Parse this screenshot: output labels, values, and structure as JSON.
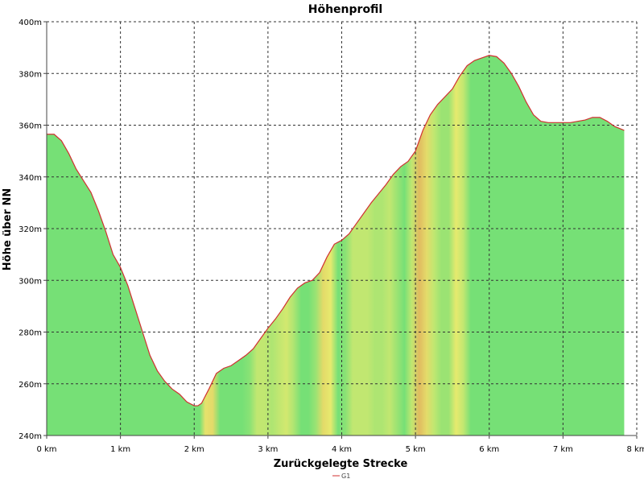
{
  "chart_data": {
    "type": "area",
    "title": "Höhenprofil",
    "xlabel": "Zurückgelegte Strecke",
    "ylabel": "Höhe über NN",
    "xlim": [
      0,
      8
    ],
    "ylim": [
      240,
      400
    ],
    "x_ticks": [
      0,
      1,
      2,
      3,
      4,
      5,
      6,
      7,
      8
    ],
    "x_tick_labels": [
      "0 km",
      "1 km",
      "2 km",
      "3 km",
      "4 km",
      "5 km",
      "6 km",
      "7 km",
      "8 km"
    ],
    "y_ticks": [
      240,
      260,
      280,
      300,
      320,
      340,
      360,
      380,
      400
    ],
    "y_tick_labels": [
      "240m",
      "260m",
      "280m",
      "300m",
      "320m",
      "340m",
      "360m",
      "380m",
      "400m"
    ],
    "grid": true,
    "legend_position": "bottom",
    "series": [
      {
        "name": "G1",
        "color": "#d03030",
        "x": [
          0,
          0.1,
          0.2,
          0.3,
          0.4,
          0.5,
          0.6,
          0.7,
          0.8,
          0.9,
          1.0,
          1.1,
          1.2,
          1.3,
          1.4,
          1.5,
          1.6,
          1.7,
          1.8,
          1.9,
          2.0,
          2.05,
          2.1,
          2.2,
          2.3,
          2.4,
          2.5,
          2.6,
          2.7,
          2.8,
          2.9,
          3.0,
          3.1,
          3.2,
          3.3,
          3.4,
          3.5,
          3.6,
          3.7,
          3.8,
          3.9,
          4.0,
          4.1,
          4.2,
          4.3,
          4.4,
          4.5,
          4.6,
          4.7,
          4.8,
          4.9,
          5.0,
          5.1,
          5.2,
          5.3,
          5.4,
          5.5,
          5.6,
          5.7,
          5.8,
          5.9,
          6.0,
          6.1,
          6.2,
          6.3,
          6.4,
          6.5,
          6.6,
          6.7,
          6.8,
          6.9,
          7.0,
          7.1,
          7.2,
          7.3,
          7.4,
          7.5,
          7.6,
          7.7,
          7.83
        ],
        "values": [
          356.5,
          356.5,
          354,
          349,
          343,
          338.5,
          334,
          327,
          319,
          310,
          305,
          298,
          289,
          280,
          271,
          265,
          261,
          258,
          256,
          253,
          251.5,
          251.5,
          252.5,
          258,
          264,
          266,
          267,
          269,
          271,
          273.5,
          277.5,
          281.5,
          285,
          289,
          293.5,
          297,
          299,
          300,
          303,
          309,
          314,
          315.5,
          318,
          322,
          326,
          330,
          333.5,
          337,
          341,
          344,
          346,
          350,
          358,
          364,
          368,
          371,
          374,
          379,
          383,
          385,
          386,
          387,
          386.5,
          384,
          380,
          375,
          369,
          364,
          361.5,
          361,
          361,
          361,
          361,
          361.5,
          362,
          363,
          363,
          361.5,
          359.5,
          358
        ]
      }
    ]
  }
}
